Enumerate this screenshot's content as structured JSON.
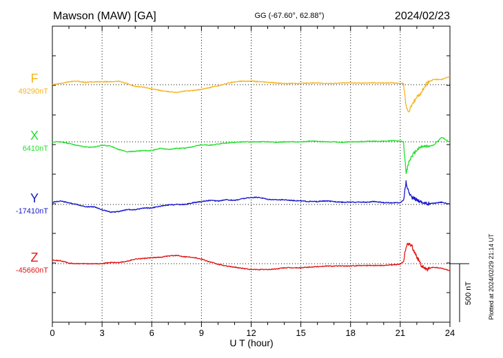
{
  "header": {
    "station": "Mawson (MAW)  [GA]",
    "coords": "GG (-67.60°,  62.88°)",
    "date": "2024/02/23"
  },
  "footer": {
    "plotted_note": "Plotted at 2024/02/29 21:14 UT"
  },
  "colors": {
    "F": "#f5b41e",
    "X": "#22e02a",
    "Y": "#1616cc",
    "Z": "#e01414",
    "axis": "#000000",
    "grid": "#000000"
  },
  "chart_data": {
    "type": "line",
    "title": "Mawson (MAW)  [GA]",
    "xlabel": "U T (hour)",
    "xlim": [
      0,
      24
    ],
    "xticks": [
      0,
      3,
      6,
      9,
      12,
      15,
      18,
      21,
      24
    ],
    "x_tick_labels": [
      "0",
      "3",
      "6",
      "9",
      "12",
      "15",
      "18",
      "21",
      "24"
    ],
    "grid": "dotted vertical every 3 hours",
    "scale_bar": {
      "label": "500 nT",
      "value_nT": 500
    },
    "series": [
      {
        "name": "F",
        "baseline_label": "49290nT",
        "baseline_nT": 49290,
        "x": [
          0,
          0.5,
          1,
          1.5,
          2,
          2.5,
          3,
          3.5,
          4,
          4.5,
          5,
          5.5,
          6,
          6.5,
          7,
          7.5,
          8,
          8.5,
          9,
          9.5,
          10,
          10.5,
          11,
          11.5,
          12,
          12.5,
          13,
          13.5,
          14,
          14.5,
          15,
          15.5,
          16,
          16.5,
          17,
          17.5,
          18,
          18.5,
          19,
          19.5,
          20,
          20.5,
          21,
          21.2,
          21.35,
          21.5,
          21.7,
          22,
          22.3,
          22.6,
          23,
          23.5,
          24
        ],
        "values": [
          0,
          10,
          25,
          30,
          20,
          25,
          25,
          25,
          30,
          10,
          -15,
          -20,
          -35,
          -50,
          -60,
          -65,
          -55,
          -50,
          -40,
          -25,
          -10,
          10,
          25,
          30,
          30,
          25,
          20,
          15,
          10,
          10,
          10,
          15,
          15,
          10,
          10,
          15,
          15,
          15,
          15,
          15,
          15,
          15,
          10,
          10,
          -180,
          -240,
          -170,
          -110,
          -60,
          10,
          45,
          45,
          70
        ]
      },
      {
        "name": "X",
        "baseline_label": "6410nT",
        "baseline_nT": 6410,
        "x": [
          0,
          0.5,
          1,
          1.5,
          2,
          2.5,
          3,
          3.5,
          4,
          4.5,
          5,
          5.5,
          6,
          6.5,
          7,
          7.5,
          8,
          8.5,
          9,
          9.5,
          10,
          10.5,
          11,
          11.5,
          12,
          12.5,
          13,
          13.5,
          14,
          14.5,
          15,
          15.5,
          16,
          16.5,
          17,
          17.5,
          18,
          18.5,
          19,
          19.5,
          20,
          20.5,
          21,
          21.2,
          21.35,
          21.5,
          21.7,
          22,
          22.3,
          22.6,
          23,
          23.5,
          24
        ],
        "values": [
          0,
          0,
          -15,
          -30,
          -45,
          -45,
          -30,
          -35,
          -65,
          -85,
          -80,
          -75,
          -75,
          -55,
          -65,
          -55,
          -55,
          -40,
          -25,
          -30,
          -20,
          -10,
          -5,
          0,
          0,
          0,
          0,
          -5,
          0,
          0,
          0,
          5,
          5,
          0,
          0,
          -5,
          0,
          0,
          5,
          5,
          5,
          10,
          5,
          0,
          -280,
          -180,
          -120,
          -70,
          -40,
          -40,
          -30,
          40,
          -5
        ]
      },
      {
        "name": "Y",
        "baseline_label": "-17410nT",
        "baseline_nT": -17410,
        "x": [
          0,
          0.5,
          1,
          1.5,
          2,
          2.5,
          3,
          3.5,
          4,
          4.5,
          5,
          5.5,
          6,
          6.5,
          7,
          7.5,
          8,
          8.5,
          9,
          9.5,
          10,
          10.5,
          11,
          11.5,
          12,
          12.5,
          13,
          13.5,
          14,
          14.5,
          15,
          15.5,
          16,
          16.5,
          17,
          17.5,
          18,
          18.5,
          19,
          19.5,
          20,
          20.5,
          21,
          21.2,
          21.35,
          21.5,
          21.7,
          22,
          22.3,
          22.6,
          23,
          23.5,
          24
        ],
        "values": [
          20,
          30,
          15,
          0,
          -20,
          -20,
          -45,
          -65,
          -60,
          -45,
          -45,
          -30,
          -30,
          -15,
          -5,
          0,
          0,
          15,
          25,
          35,
          30,
          40,
          35,
          50,
          60,
          60,
          45,
          40,
          40,
          35,
          30,
          25,
          25,
          30,
          25,
          20,
          20,
          20,
          20,
          25,
          15,
          15,
          15,
          40,
          190,
          110,
          60,
          40,
          20,
          5,
          10,
          20,
          0
        ]
      },
      {
        "name": "Z",
        "baseline_label": "-45660nT",
        "baseline_nT": -45660,
        "x": [
          0,
          0.5,
          1,
          1.5,
          2,
          2.5,
          3,
          3.5,
          4,
          4.5,
          5,
          5.5,
          6,
          6.5,
          7,
          7.5,
          8,
          8.5,
          9,
          9.5,
          10,
          10.5,
          11,
          11.5,
          12,
          12.5,
          13,
          13.5,
          14,
          14.5,
          15,
          15.5,
          16,
          16.5,
          17,
          17.5,
          18,
          18.5,
          19,
          19.5,
          20,
          20.5,
          21,
          21.2,
          21.35,
          21.5,
          21.7,
          22,
          22.3,
          22.6,
          23,
          23.5,
          24
        ],
        "values": [
          30,
          25,
          5,
          0,
          0,
          0,
          0,
          10,
          10,
          20,
          40,
          45,
          50,
          55,
          65,
          70,
          60,
          55,
          40,
          15,
          -5,
          -20,
          -30,
          -40,
          -50,
          -50,
          -50,
          -45,
          -35,
          -35,
          -35,
          -30,
          -25,
          -20,
          -20,
          -20,
          -20,
          -15,
          -15,
          -15,
          -15,
          -10,
          -5,
          20,
          150,
          170,
          150,
          60,
          -20,
          -50,
          -30,
          -40,
          -60
        ]
      }
    ]
  }
}
